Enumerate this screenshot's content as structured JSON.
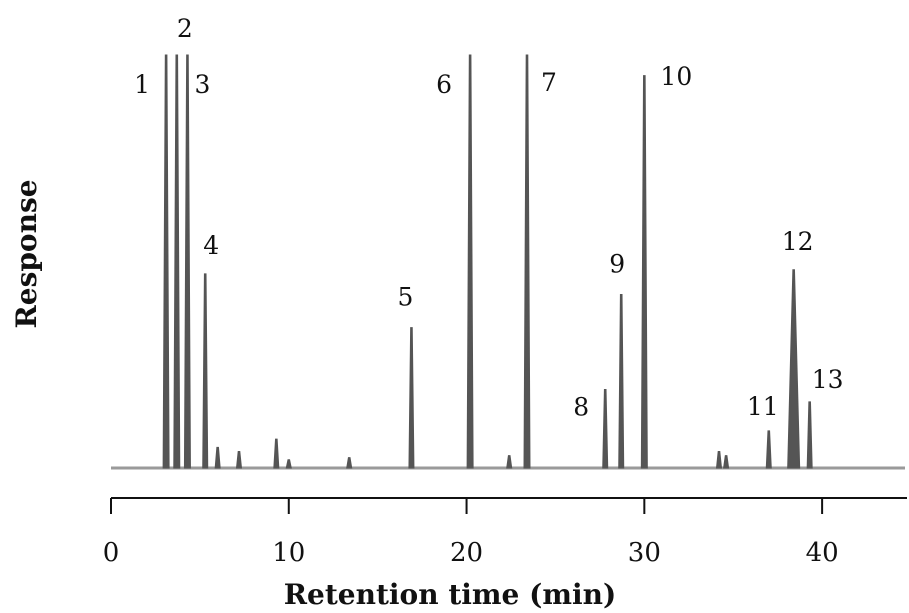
{
  "chart_data": {
    "type": "line",
    "title": "",
    "xlabel": "Retention time (min)",
    "ylabel": "Response",
    "xlim": [
      0,
      45
    ],
    "x_ticks": [
      0,
      10,
      20,
      30,
      40
    ],
    "grid": false,
    "baseline_color": "#9a9a9a",
    "peak_color": "#555555",
    "peaks": [
      {
        "label": "1",
        "x": 3.1,
        "height": 1.0
      },
      {
        "label": "2",
        "x": 3.7,
        "height": 1.0
      },
      {
        "label": "3",
        "x": 4.3,
        "height": 1.0
      },
      {
        "label": "4",
        "x": 5.3,
        "height": 0.47
      },
      {
        "label": "5",
        "x": 16.9,
        "height": 0.34
      },
      {
        "label": "6",
        "x": 20.2,
        "height": 1.0
      },
      {
        "label": "7",
        "x": 23.4,
        "height": 1.0
      },
      {
        "label": "8",
        "x": 27.8,
        "height": 0.19
      },
      {
        "label": "9",
        "x": 28.7,
        "height": 0.42
      },
      {
        "label": "10",
        "x": 30.0,
        "height": 0.95
      },
      {
        "label": "11",
        "x": 37.0,
        "height": 0.09
      },
      {
        "label": "12",
        "x": 38.4,
        "height": 0.48
      },
      {
        "label": "13",
        "x": 39.3,
        "height": 0.16
      }
    ],
    "minor_peaks": [
      {
        "x": 6.0,
        "height": 0.05
      },
      {
        "x": 7.2,
        "height": 0.04
      },
      {
        "x": 9.3,
        "height": 0.07
      },
      {
        "x": 10.0,
        "height": 0.02
      },
      {
        "x": 13.4,
        "height": 0.025
      },
      {
        "x": 22.4,
        "height": 0.03
      },
      {
        "x": 34.2,
        "height": 0.04
      },
      {
        "x": 34.6,
        "height": 0.03
      }
    ]
  }
}
